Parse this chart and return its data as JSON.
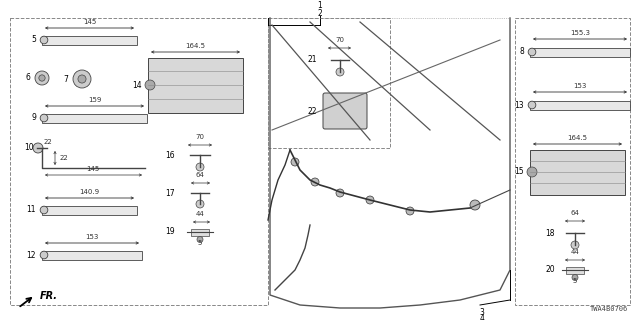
{
  "bg_color": "#ffffff",
  "lc": "#555555",
  "dark": "#333333",
  "diagram_code": "TWA4B0706",
  "fs": 5.5
}
